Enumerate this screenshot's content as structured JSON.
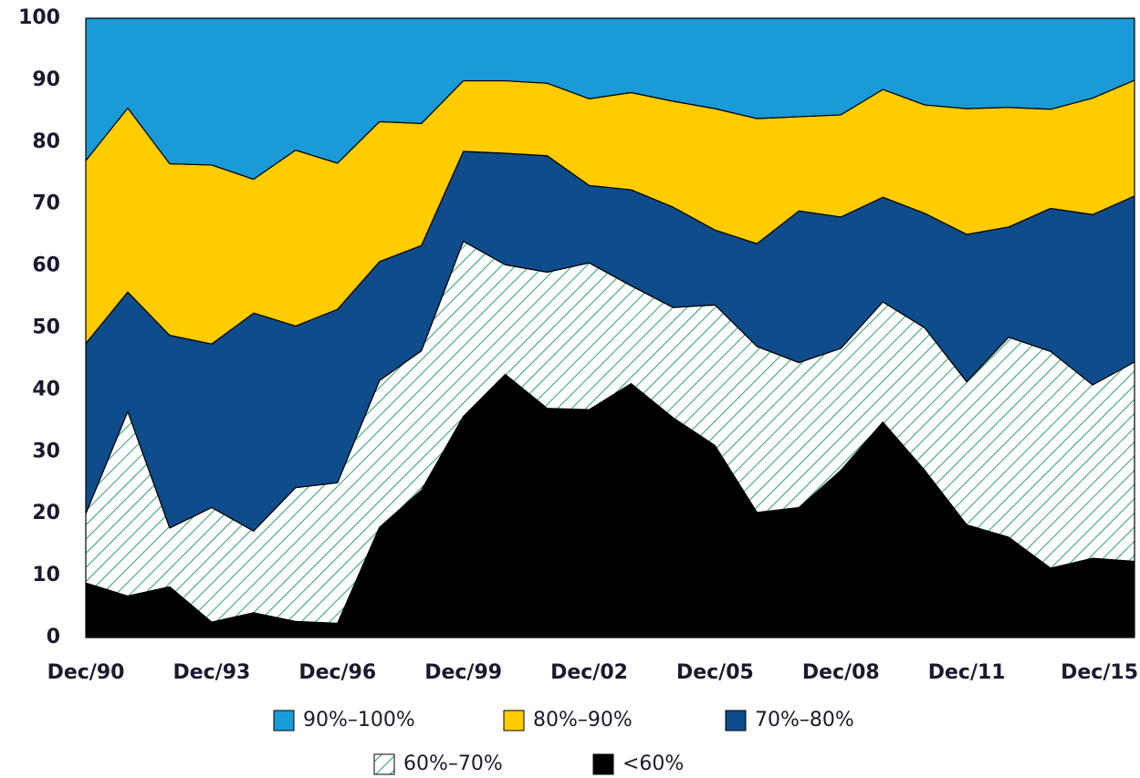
{
  "chart_data": {
    "type": "stacked_area",
    "categories": [
      "Dec/90",
      null,
      null,
      "Dec/93",
      null,
      null,
      "Dec/96",
      null,
      null,
      "Dec/99",
      null,
      null,
      "Dec/02",
      null,
      null,
      "Dec/05",
      null,
      null,
      "Dec/08",
      null,
      null,
      "Dec/11",
      null,
      null,
      null,
      "Dec/15"
    ],
    "series": [
      {
        "name": "90%–100%",
        "color": "#1a9ad6",
        "values": [
          23.0,
          14.5,
          23.5,
          23.7,
          26.0,
          21.3,
          23.4,
          16.7,
          17.0,
          10.1,
          10.1,
          10.5,
          13.0,
          12.0,
          13.4,
          14.6,
          16.2,
          15.9,
          15.6,
          11.5,
          14.0,
          14.6,
          14.4,
          14.7,
          12.9,
          10.0
        ]
      },
      {
        "name": "80%–90%",
        "color": "#ffcc00",
        "values": [
          29.5,
          29.7,
          27.7,
          28.9,
          21.6,
          28.4,
          23.6,
          22.6,
          19.7,
          11.4,
          11.7,
          11.7,
          14.0,
          15.7,
          17.1,
          19.6,
          20.2,
          15.2,
          16.5,
          17.4,
          17.5,
          20.3,
          19.3,
          16.0,
          18.8,
          18.7
        ]
      },
      {
        "name": "70%–80%",
        "color": "#0f4c8c",
        "values": [
          27.5,
          19.3,
          31.1,
          26.4,
          35.2,
          26.1,
          28.0,
          19.2,
          17.0,
          14.5,
          18.0,
          18.8,
          12.5,
          15.5,
          16.2,
          12.1,
          16.6,
          24.5,
          21.2,
          16.9,
          18.5,
          23.8,
          17.8,
          23.1,
          27.5,
          26.8
        ]
      },
      {
        "name": "60%–70%",
        "color": "#2e9e6e",
        "hatch": true,
        "values": [
          11.2,
          29.8,
          9.5,
          18.5,
          13.2,
          21.6,
          22.7,
          23.7,
          22.5,
          28.3,
          17.7,
          22.0,
          23.7,
          15.8,
          17.8,
          22.7,
          26.8,
          23.4,
          19.7,
          19.4,
          23.0,
          23.1,
          32.3,
          35.0,
          28.0,
          32.2
        ]
      },
      {
        "name": "<60%",
        "color": "#000000",
        "values": [
          8.8,
          6.7,
          8.2,
          2.5,
          4.0,
          2.6,
          2.3,
          17.8,
          23.8,
          35.7,
          42.5,
          37.0,
          36.8,
          41.0,
          35.5,
          31.0,
          20.2,
          21.0,
          27.0,
          34.8,
          27.0,
          18.2,
          16.2,
          11.2,
          12.8,
          12.3
        ]
      }
    ],
    "ylim": [
      0,
      100
    ],
    "yticks": [
      0,
      10,
      20,
      30,
      40,
      50,
      60,
      70,
      80,
      90,
      100
    ],
    "grid": false
  }
}
